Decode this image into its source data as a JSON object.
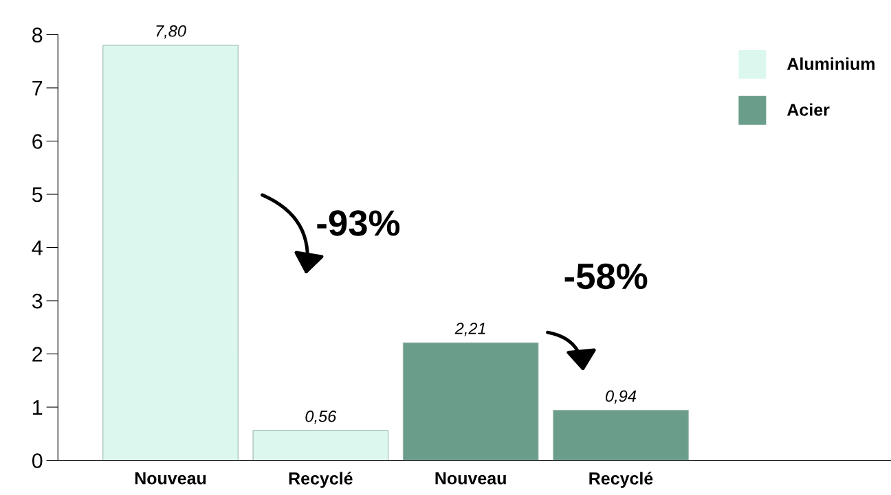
{
  "chart_data": {
    "type": "bar",
    "categories": [
      "Nouveau",
      "Recyclé",
      "Nouveau",
      "Recyclé"
    ],
    "series": [
      {
        "name": "Aluminium",
        "color": "#dcf8ee",
        "values": [
          7.8,
          0.56,
          null,
          null
        ],
        "value_labels": [
          "7,80",
          "0,56",
          null,
          null
        ]
      },
      {
        "name": "Acier",
        "color": "#6b9e8a",
        "values": [
          null,
          null,
          2.21,
          0.94
        ],
        "value_labels": [
          null,
          null,
          "2,21",
          "0,94"
        ]
      }
    ],
    "ylim": [
      0,
      8
    ],
    "yticks": [
      0,
      1,
      2,
      3,
      4,
      5,
      6,
      7,
      8
    ],
    "grid": false,
    "legend": "top right",
    "annotations": [
      "-93%",
      "-58%"
    ]
  }
}
